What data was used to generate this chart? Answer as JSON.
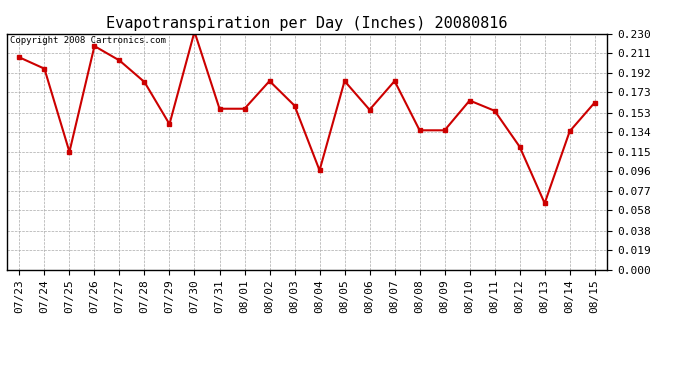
{
  "title": "Evapotranspiration per Day (Inches) 20080816",
  "copyright": "Copyright 2008 Cartronics.com",
  "dates": [
    "07/23",
    "07/24",
    "07/25",
    "07/26",
    "07/27",
    "07/28",
    "07/29",
    "07/30",
    "07/31",
    "08/01",
    "08/02",
    "08/03",
    "08/04",
    "08/05",
    "08/06",
    "08/07",
    "08/08",
    "08/09",
    "08/10",
    "08/11",
    "08/12",
    "08/13",
    "08/14",
    "08/15"
  ],
  "values": [
    0.207,
    0.196,
    0.115,
    0.218,
    0.204,
    0.183,
    0.142,
    0.232,
    0.157,
    0.157,
    0.184,
    0.16,
    0.097,
    0.184,
    0.156,
    0.184,
    0.136,
    0.136,
    0.165,
    0.155,
    0.12,
    0.065,
    0.135,
    0.163
  ],
  "yticks": [
    0.0,
    0.019,
    0.038,
    0.058,
    0.077,
    0.096,
    0.115,
    0.134,
    0.153,
    0.173,
    0.192,
    0.211,
    0.23
  ],
  "line_color": "#cc0000",
  "marker": "s",
  "marker_size": 3,
  "bg_color": "#ffffff",
  "plot_bg_color": "#ffffff",
  "grid_color": "#aaaaaa",
  "title_fontsize": 11,
  "tick_fontsize": 8,
  "copyright_fontsize": 6.5,
  "ylim": [
    0.0,
    0.23
  ],
  "copyright_color": "#000000"
}
